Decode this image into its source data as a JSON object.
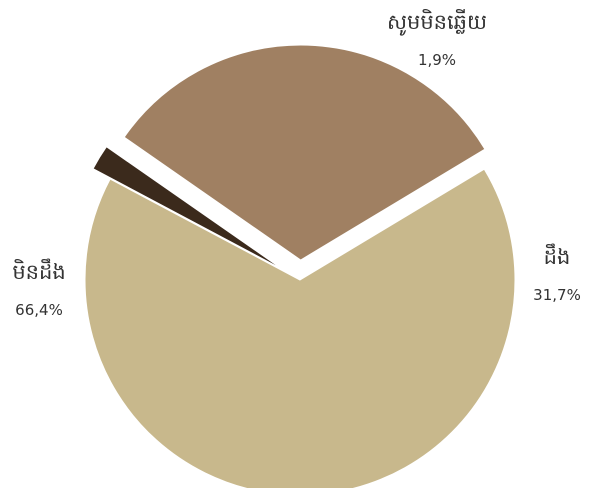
{
  "chart_data": {
    "type": "pie",
    "slices": [
      {
        "label": "សូមមិនឆ្លើយ",
        "value": 1.9,
        "display": "1,9%",
        "color": "#3b2a1c",
        "exploded": true
      },
      {
        "label": "ដឹង",
        "value": 31.7,
        "display": "31,7%",
        "color": "#a08062"
      },
      {
        "label": "មិនដឹង",
        "value": 66.4,
        "display": "66,4%",
        "color": "#c8b88c"
      }
    ],
    "legend": "none (direct labels)"
  }
}
